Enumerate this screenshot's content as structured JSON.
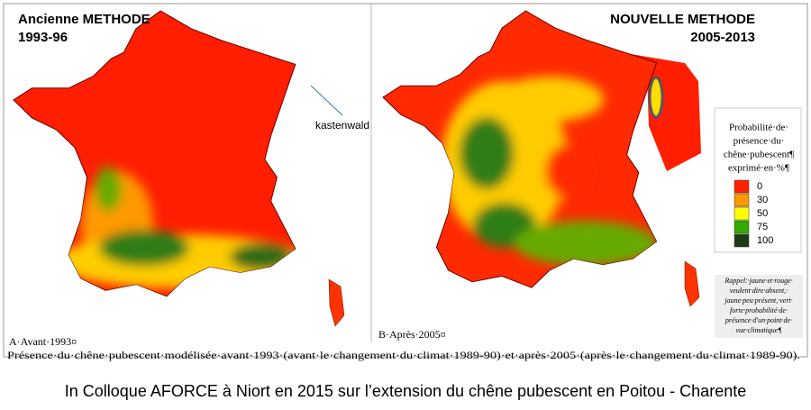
{
  "left_map": {
    "title": "Ancienne METHODE",
    "period": "1993-96",
    "annotation": "kastenwald",
    "caption": "A·Avant·1993¤"
  },
  "right_map": {
    "title": "NOUVELLE METHODE",
    "period": "2005-2013",
    "caption": "B·Après·2005¤"
  },
  "legend": {
    "title": [
      "Probabilité·de·",
      "présence·du·",
      "chêne·pubescent¶",
      "exprimé·en·%¶"
    ],
    "items": [
      {
        "label": 0,
        "color": "#ff2200"
      },
      {
        "label": 30,
        "color": "#ff9900"
      },
      {
        "label": 50,
        "color": "#ffff00"
      },
      {
        "label": 75,
        "color": "#33aa00"
      },
      {
        "label": 100,
        "color": "#1e3a12"
      }
    ]
  },
  "note": [
    "Rappel:·jaune·et·rouge·",
    "veulent·dire·absent,·",
    "jaune·peu·présent,·vert·",
    "forte·probabilité·de·",
    "présence·d'un·point·de·",
    "vue·climatique¶"
  ],
  "figure_caption": "Présence·du·chêne·pubescent·modélisée·avant·1993·(avant·le·changement·du·climat·1989-90)·et·après·2005·(après·le·changement·du·climat·1989-90).",
  "footer": "In Colloque AFORCE à Niort en 2015 sur l’extension du chêne pubescent en Poitou - Charente"
}
